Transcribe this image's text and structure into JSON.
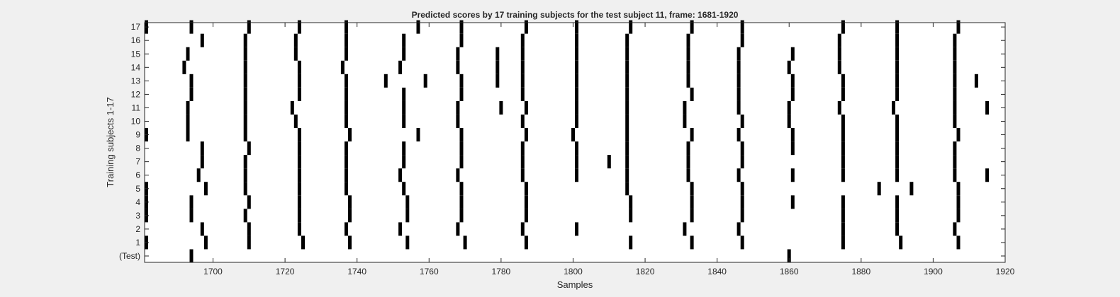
{
  "chart_data": {
    "type": "raster",
    "title": "Predicted scores by 17 training subjects for the test subject 11, frame: 1681-1920",
    "xlabel": "Samples",
    "ylabel": "Training subjects 1-17",
    "xlim": [
      1681,
      1920
    ],
    "x_ticks": [
      1700,
      1720,
      1740,
      1760,
      1780,
      1800,
      1820,
      1840,
      1860,
      1880,
      1900,
      1920
    ],
    "y_ticks": [
      "(Test)",
      "1",
      "2",
      "3",
      "4",
      "5",
      "6",
      "7",
      "8",
      "9",
      "10",
      "11",
      "12",
      "13",
      "14",
      "15",
      "16",
      "17"
    ],
    "grid": false,
    "colors": {
      "background": "#f0f0f0",
      "axes": "#ffffff",
      "mark": "#000000",
      "text": "#262626"
    },
    "rows": [
      {
        "label": "(Test)",
        "x": [
          1694,
          1860
        ]
      },
      {
        "label": "1",
        "x": [
          1681,
          1698,
          1710,
          1725,
          1738,
          1754,
          1770,
          1787,
          1816,
          1833,
          1847,
          1875,
          1891,
          1907
        ]
      },
      {
        "label": "2",
        "x": [
          1697,
          1710,
          1724,
          1737,
          1752,
          1768,
          1786,
          1801,
          1831,
          1846,
          1875,
          1890,
          1906
        ]
      },
      {
        "label": "3",
        "x": [
          1681,
          1694,
          1709,
          1724,
          1738,
          1754,
          1769,
          1787,
          1816,
          1833,
          1847,
          1875,
          1890,
          1907
        ]
      },
      {
        "label": "4",
        "x": [
          1681,
          1694,
          1710,
          1724,
          1738,
          1754,
          1769,
          1787,
          1816,
          1833,
          1847,
          1861,
          1875,
          1890,
          1907
        ]
      },
      {
        "label": "5",
        "x": [
          1681,
          1698,
          1709,
          1724,
          1737,
          1753,
          1769,
          1787,
          1815,
          1833,
          1847,
          1885,
          1894,
          1907
        ]
      },
      {
        "label": "6",
        "x": [
          1696,
          1709,
          1724,
          1737,
          1752,
          1768,
          1786,
          1801,
          1815,
          1832,
          1846,
          1861,
          1875,
          1890,
          1906,
          1915
        ]
      },
      {
        "label": "7",
        "x": [
          1697,
          1709,
          1724,
          1737,
          1753,
          1769,
          1786,
          1801,
          1810,
          1815,
          1832,
          1847,
          1875,
          1890,
          1906
        ]
      },
      {
        "label": "8",
        "x": [
          1697,
          1710,
          1724,
          1737,
          1753,
          1769,
          1786,
          1801,
          1815,
          1832,
          1847,
          1861,
          1875,
          1890,
          1906
        ]
      },
      {
        "label": "9",
        "x": [
          1681,
          1693,
          1709,
          1724,
          1738,
          1757,
          1769,
          1787,
          1800,
          1815,
          1833,
          1846,
          1861,
          1875,
          1890,
          1907
        ]
      },
      {
        "label": "10",
        "x": [
          1693,
          1709,
          1723,
          1737,
          1753,
          1768,
          1786,
          1801,
          1815,
          1831,
          1847,
          1860,
          1875,
          1890,
          1906
        ]
      },
      {
        "label": "11",
        "x": [
          1693,
          1709,
          1722,
          1737,
          1753,
          1768,
          1780,
          1787,
          1801,
          1815,
          1831,
          1846,
          1860,
          1874,
          1889,
          1906,
          1915
        ]
      },
      {
        "label": "12",
        "x": [
          1694,
          1709,
          1724,
          1737,
          1753,
          1769,
          1786,
          1801,
          1815,
          1833,
          1846,
          1861,
          1875,
          1890,
          1906
        ]
      },
      {
        "label": "13",
        "x": [
          1694,
          1709,
          1724,
          1737,
          1748,
          1759,
          1769,
          1779,
          1786,
          1801,
          1815,
          1832,
          1846,
          1861,
          1875,
          1890,
          1906,
          1912
        ]
      },
      {
        "label": "14",
        "x": [
          1692,
          1709,
          1724,
          1736,
          1752,
          1768,
          1779,
          1786,
          1801,
          1815,
          1832,
          1846,
          1860,
          1874,
          1890,
          1906
        ]
      },
      {
        "label": "15",
        "x": [
          1693,
          1709,
          1723,
          1737,
          1753,
          1768,
          1779,
          1786,
          1801,
          1815,
          1832,
          1846,
          1861,
          1874,
          1890,
          1906
        ]
      },
      {
        "label": "16",
        "x": [
          1697,
          1709,
          1723,
          1737,
          1753,
          1769,
          1786,
          1801,
          1815,
          1832,
          1847,
          1874,
          1890,
          1906
        ]
      },
      {
        "label": "17",
        "x": [
          1681,
          1694,
          1710,
          1724,
          1737,
          1757,
          1769,
          1787,
          1801,
          1816,
          1833,
          1847,
          1875,
          1890,
          1907
        ]
      }
    ]
  }
}
